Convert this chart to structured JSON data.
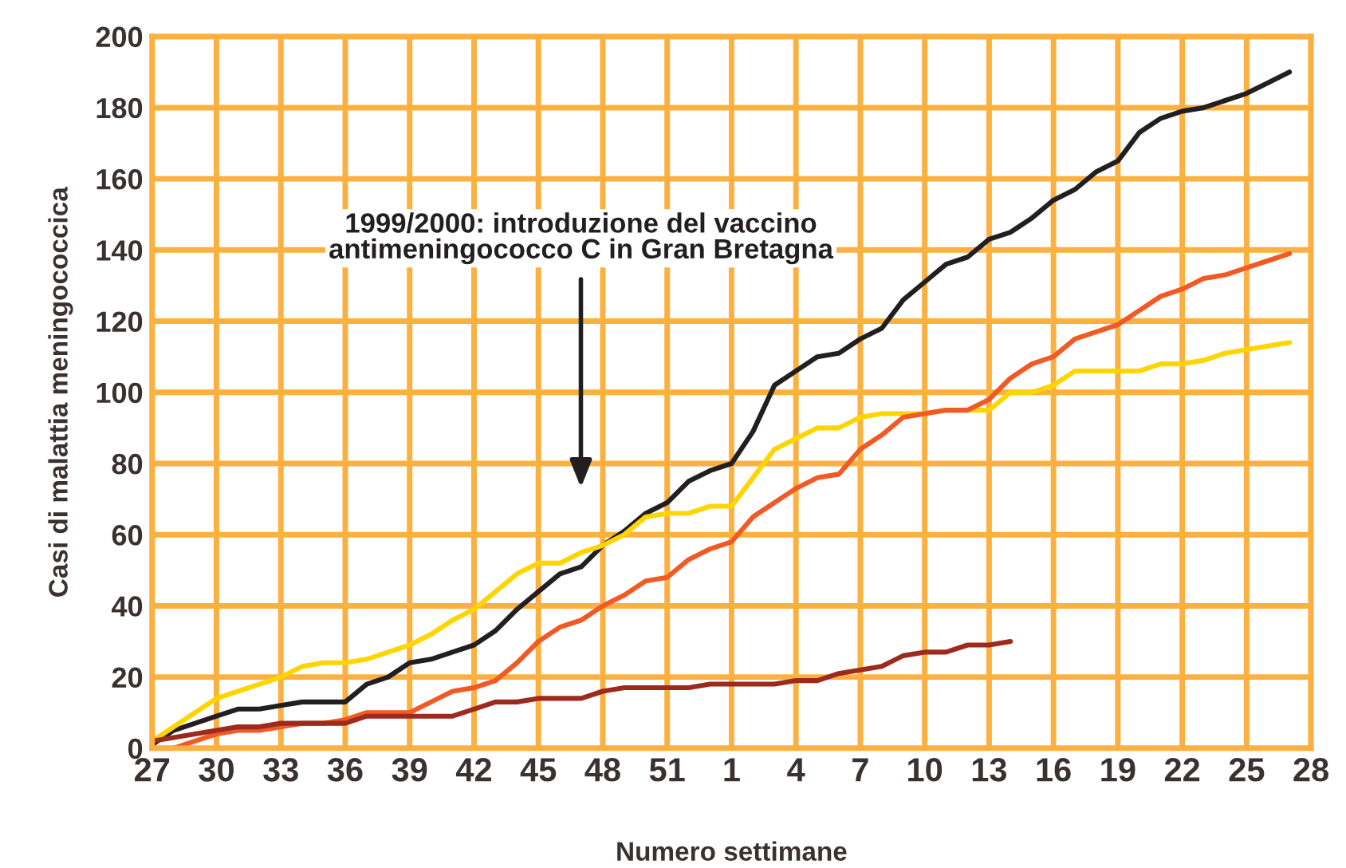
{
  "chart_data": {
    "type": "line",
    "xlabel": "Numero settimane",
    "ylabel": "Casi di malattia meningococcica",
    "categories": [
      "27",
      null,
      null,
      "30",
      null,
      null,
      "33",
      null,
      null,
      "36",
      null,
      null,
      "39",
      null,
      null,
      "42",
      null,
      null,
      "45",
      null,
      null,
      "48",
      null,
      null,
      "51",
      null,
      null,
      "1",
      null,
      null,
      "4",
      null,
      null,
      "7",
      null,
      null,
      "10",
      null,
      null,
      "13",
      null,
      null,
      "16",
      null,
      null,
      "19",
      null,
      null,
      "22",
      null,
      null,
      "25",
      null,
      null,
      "28"
    ],
    "series": [
      {
        "color": "#231f20",
        "values": [
          1,
          5,
          7,
          9,
          11,
          11,
          12,
          13,
          13,
          13,
          18,
          20,
          24,
          25,
          27,
          29,
          33,
          39,
          44,
          49,
          51,
          57,
          61,
          66,
          69,
          75,
          78,
          80,
          89,
          102,
          106,
          110,
          111,
          115,
          118,
          126,
          131,
          136,
          138,
          143,
          145,
          149,
          154,
          157,
          162,
          165,
          173,
          177,
          179,
          180,
          182,
          184,
          187,
          190,
          null
        ]
      },
      {
        "color": "#ffd500",
        "values": [
          2,
          6,
          10,
          14,
          16,
          18,
          20,
          23,
          24,
          24,
          25,
          27,
          29,
          32,
          36,
          39,
          44,
          49,
          52,
          52,
          55,
          57,
          60,
          65,
          66,
          66,
          68,
          68,
          76,
          84,
          87,
          90,
          90,
          93,
          94,
          94,
          94,
          95,
          95,
          95,
          100,
          100,
          102,
          106,
          106,
          106,
          106,
          108,
          108,
          109,
          111,
          112,
          113,
          114,
          null
        ]
      },
      {
        "color": "#f15a24",
        "values": [
          0,
          0,
          2,
          4,
          5,
          5,
          6,
          7,
          7,
          8,
          10,
          10,
          10,
          13,
          16,
          17,
          19,
          24,
          30,
          34,
          36,
          40,
          43,
          47,
          48,
          53,
          56,
          58,
          65,
          69,
          73,
          76,
          77,
          84,
          88,
          93,
          94,
          95,
          95,
          98,
          104,
          108,
          110,
          115,
          117,
          119,
          123,
          127,
          129,
          132,
          133,
          135,
          137,
          139,
          null
        ]
      },
      {
        "color": "#9e2a1e",
        "values": [
          2,
          3,
          4,
          5,
          6,
          6,
          7,
          7,
          7,
          7,
          9,
          9,
          9,
          9,
          9,
          11,
          13,
          13,
          14,
          14,
          14,
          16,
          17,
          17,
          17,
          17,
          18,
          18,
          18,
          18,
          19,
          19,
          21,
          22,
          23,
          26,
          27,
          27,
          29,
          29,
          30,
          null,
          null,
          null,
          null,
          null,
          null,
          null,
          null,
          null,
          null,
          null,
          null,
          null,
          null
        ]
      }
    ],
    "annotations": [
      "1999/2000: introduzione del vaccino\nantimeningococco C in Gran Bretagna"
    ],
    "ylim": [
      0,
      200
    ],
    "yticks": [
      0,
      20,
      40,
      60,
      80,
      100,
      120,
      140,
      160,
      180,
      200
    ],
    "grid": true,
    "legend": false,
    "marker": "none",
    "line_style": "solid"
  }
}
